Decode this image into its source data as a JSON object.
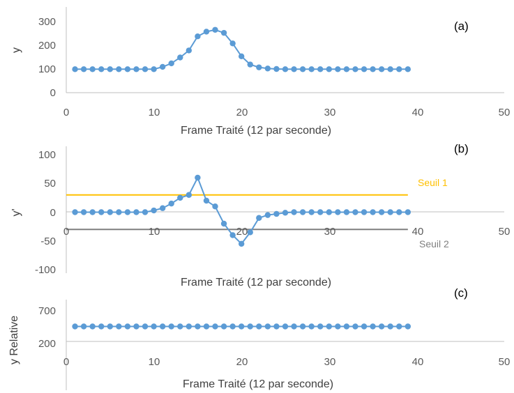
{
  "colors": {
    "series": "#5b9bd5",
    "threshold1": "#ffc000",
    "threshold2": "#7f7f7f",
    "axis": "#bfbfbf"
  },
  "chart_data": [
    {
      "type": "line",
      "panel_label": "(a)",
      "xlabel": "Frame Traité (12 par seconde)",
      "ylabel": "y",
      "xlim": [
        0,
        50
      ],
      "ylim": [
        0,
        300
      ],
      "x_ticks": [
        "0",
        "10",
        "20",
        "30",
        "40",
        "50"
      ],
      "y_ticks": [
        "0",
        "100",
        "200",
        "300"
      ],
      "grid": false,
      "series": [
        {
          "x": [
            1,
            2,
            3,
            4,
            5,
            6,
            7,
            8,
            9,
            10,
            11,
            12,
            13,
            14,
            15,
            16,
            17,
            18,
            19,
            20,
            21,
            22,
            23,
            24,
            25,
            26,
            27,
            28,
            29,
            30,
            31,
            32,
            33,
            34,
            35,
            36,
            37,
            38,
            39
          ],
          "values": [
            100,
            100,
            100,
            100,
            100,
            100,
            100,
            100,
            100,
            100,
            110,
            125,
            150,
            180,
            240,
            260,
            268,
            255,
            210,
            155,
            120,
            108,
            103,
            101,
            100,
            100,
            100,
            100,
            100,
            100,
            100,
            100,
            100,
            100,
            100,
            100,
            100,
            100,
            100
          ]
        }
      ]
    },
    {
      "type": "line",
      "panel_label": "(b)",
      "xlabel": "Frame Traité (12 par seconde)",
      "ylabel": "y'",
      "xlim": [
        0,
        50
      ],
      "ylim": [
        -100,
        100
      ],
      "x_ticks": [
        "0",
        "10",
        "20",
        "30",
        "40",
        "50"
      ],
      "y_ticks": [
        "-100",
        "-50",
        "0",
        "50",
        "100"
      ],
      "grid": false,
      "series": [
        {
          "x": [
            1,
            2,
            3,
            4,
            5,
            6,
            7,
            8,
            9,
            10,
            11,
            12,
            13,
            14,
            15,
            16,
            17,
            18,
            19,
            20,
            21,
            22,
            23,
            24,
            25,
            26,
            27,
            28,
            29,
            30,
            31,
            32,
            33,
            34,
            35,
            36,
            37,
            38,
            39
          ],
          "values": [
            0,
            0,
            0,
            0,
            0,
            0,
            0,
            0,
            0,
            3,
            7,
            15,
            25,
            30,
            60,
            20,
            10,
            -20,
            -40,
            -55,
            -35,
            -10,
            -5,
            -3,
            -1,
            0,
            0,
            0,
            0,
            0,
            0,
            0,
            0,
            0,
            0,
            0,
            0,
            0,
            0
          ]
        }
      ],
      "thresholds": [
        {
          "name": "Seuil 1",
          "value": 30,
          "x_range": [
            0,
            39
          ]
        },
        {
          "name": "Seuil 2",
          "value": -30,
          "x_range": [
            0,
            39
          ]
        }
      ]
    },
    {
      "type": "line",
      "panel_label": "(c)",
      "xlabel": "Frame Traité (12 par seconde)",
      "ylabel": "y Relative",
      "xlim": [
        0,
        50
      ],
      "ylim": [
        200,
        800
      ],
      "x_ticks": [
        "0",
        "10",
        "20",
        "30",
        "40",
        "50"
      ],
      "y_ticks": [
        "200",
        "700"
      ],
      "grid": false,
      "series": [
        {
          "x": [
            1,
            2,
            3,
            4,
            5,
            6,
            7,
            8,
            9,
            10,
            11,
            12,
            13,
            14,
            15,
            16,
            17,
            18,
            19,
            20,
            21,
            22,
            23,
            24,
            25,
            26,
            27,
            28,
            29,
            30,
            31,
            32,
            33,
            34,
            35,
            36,
            37,
            38,
            39
          ],
          "values": [
            500,
            500,
            500,
            500,
            500,
            500,
            500,
            500,
            500,
            500,
            500,
            500,
            500,
            500,
            500,
            500,
            500,
            500,
            500,
            500,
            500,
            500,
            500,
            500,
            500,
            500,
            500,
            500,
            500,
            500,
            500,
            500,
            500,
            500,
            500,
            500,
            500,
            500,
            500
          ]
        }
      ]
    }
  ]
}
